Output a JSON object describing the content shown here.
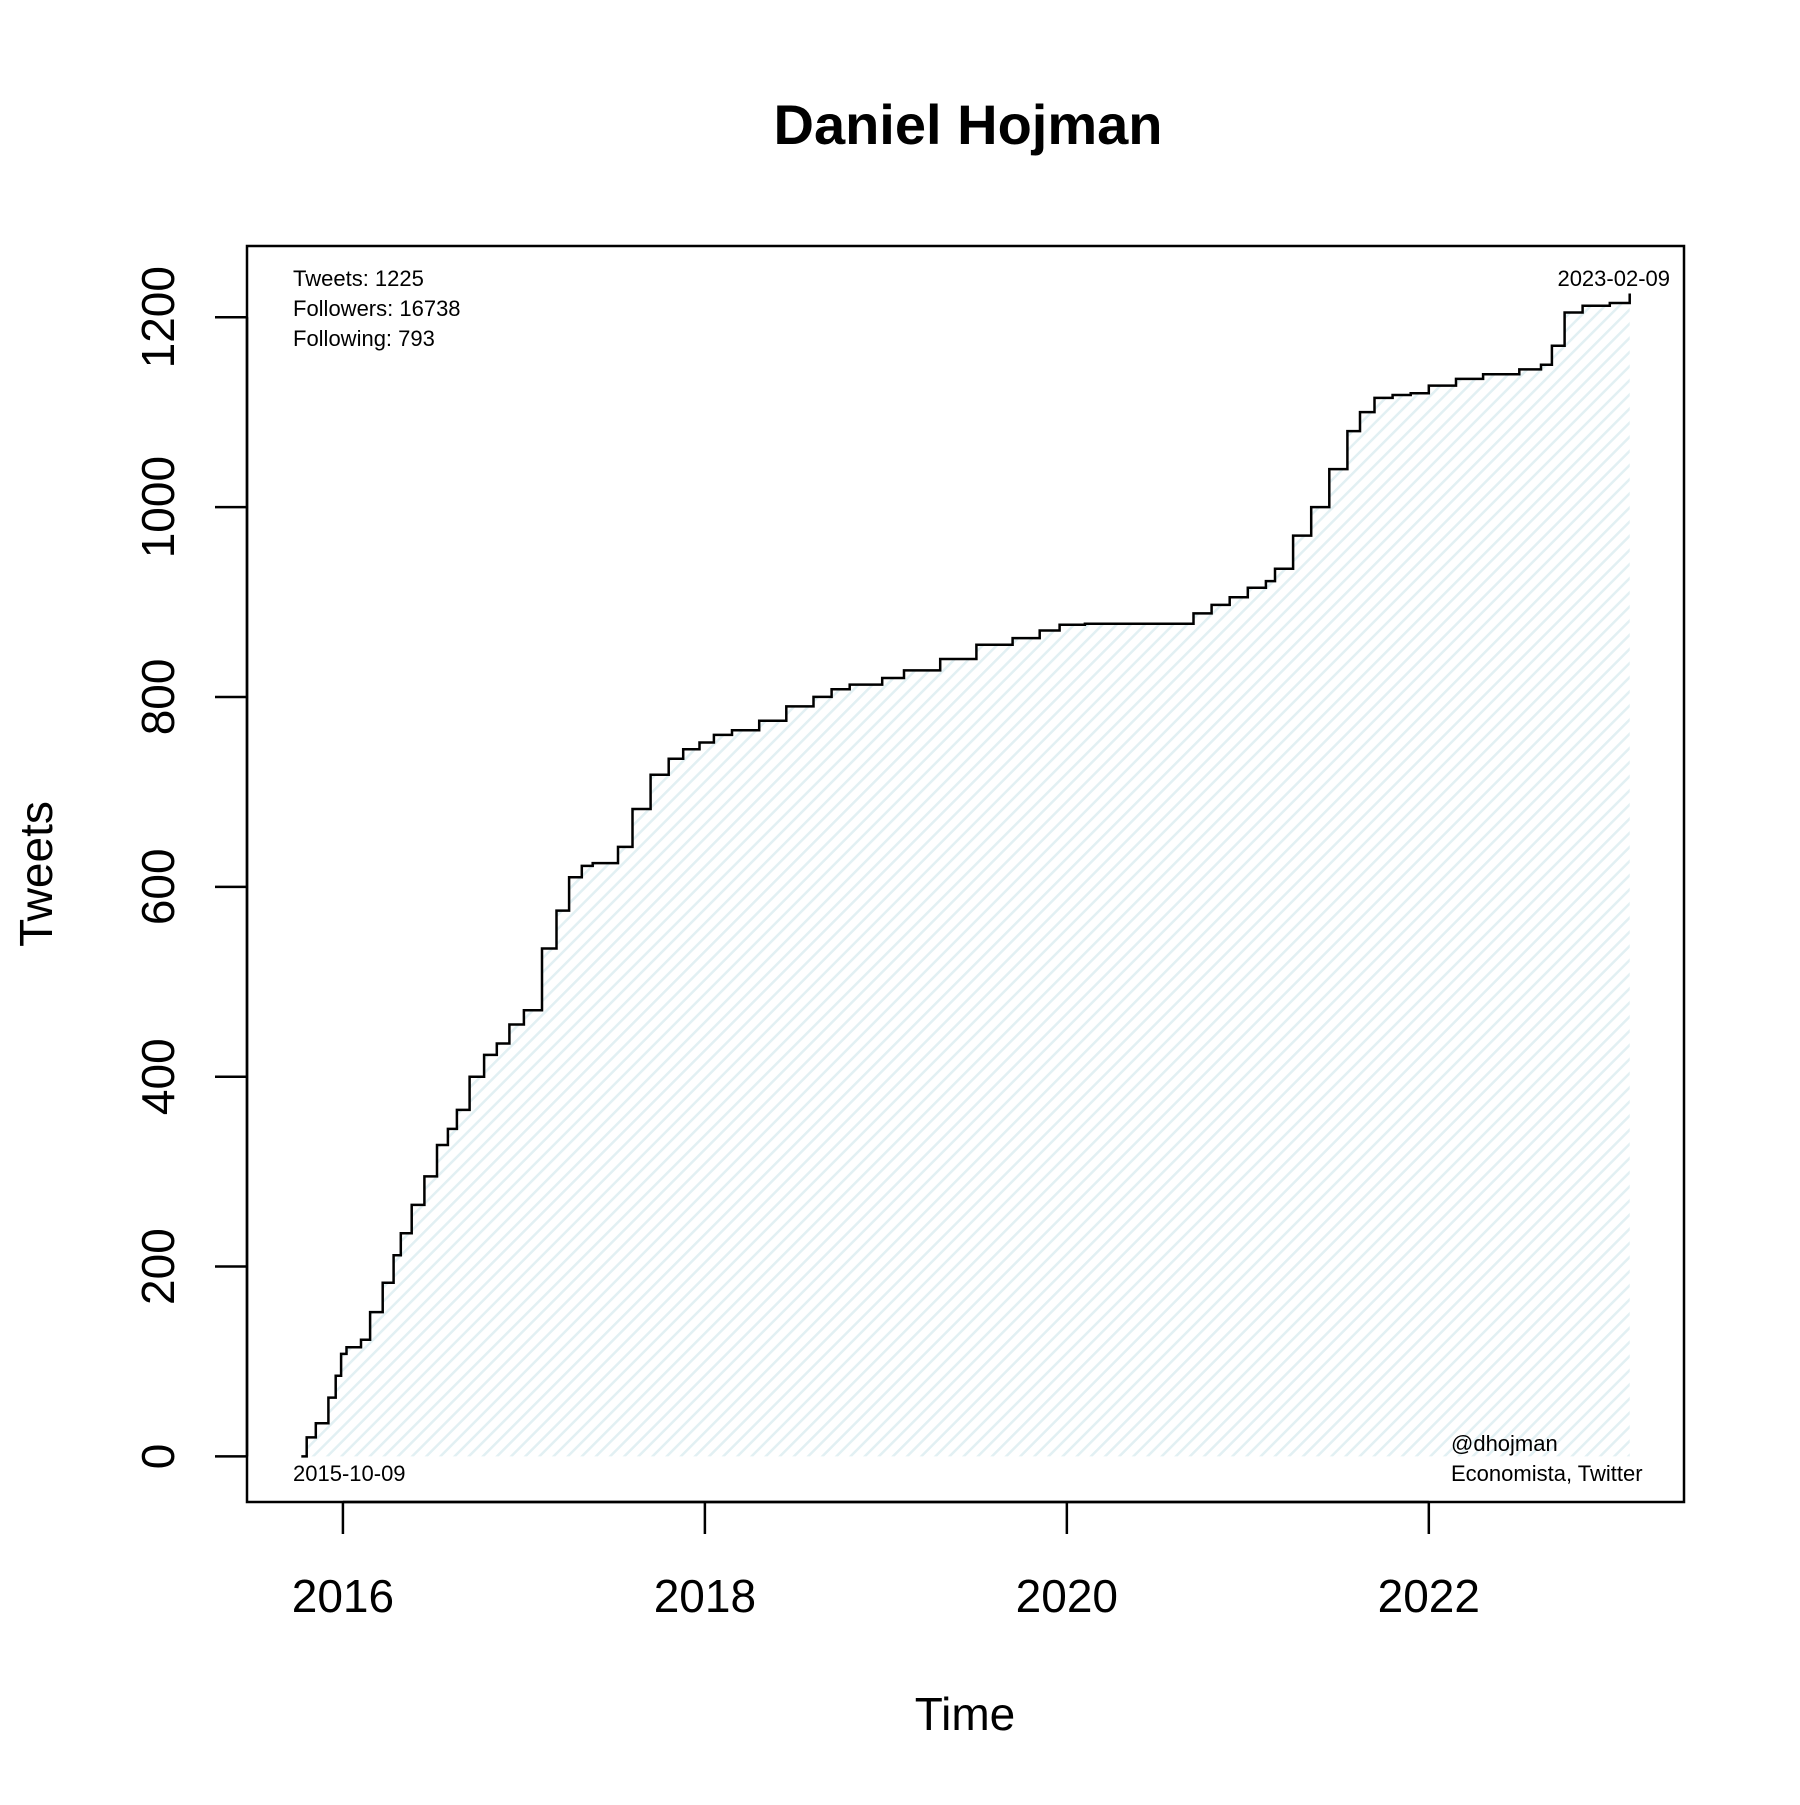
{
  "chart_data": {
    "type": "area",
    "title": "Daniel Hojman",
    "xlabel": "Time",
    "ylabel": "Tweets",
    "xlim": [
      2015.47,
      2023.41
    ],
    "ylim": [
      -48,
      1275
    ],
    "x_ticks": [
      "2016",
      "2018",
      "2020",
      "2022"
    ],
    "y_ticks": [
      "0",
      "200",
      "400",
      "600",
      "800",
      "1000",
      "1200"
    ],
    "grid": false,
    "fill_color": "#e6f3f5",
    "line_color": "#000000",
    "stats": [
      "Tweets: 1225",
      "Followers: 16738",
      "Following: 793"
    ],
    "start_date": "2015-10-09",
    "end_date": "2023-02-09",
    "credits": [
      "@dhojman",
      "Economista, Twitter"
    ],
    "series": [
      {
        "x": [
          2015.77,
          2015.8,
          2015.85,
          2015.92,
          2015.96,
          2015.99,
          2016.02,
          2016.1,
          2016.15,
          2016.22,
          2016.28,
          2016.32,
          2016.38,
          2016.45,
          2016.52,
          2016.58,
          2016.63,
          2016.7,
          2016.78,
          2016.85,
          2016.92,
          2017.0,
          2017.1,
          2017.18,
          2017.25,
          2017.32,
          2017.38,
          2017.45,
          2017.52,
          2017.6,
          2017.7,
          2017.8,
          2017.88,
          2017.97,
          2018.05,
          2018.15,
          2018.3,
          2018.45,
          2018.6,
          2018.7,
          2018.8,
          2018.98,
          2019.1,
          2019.3,
          2019.5,
          2019.7,
          2019.85,
          2019.96,
          2020.1,
          2020.3,
          2020.5,
          2020.67,
          2020.7,
          2020.8,
          2020.9,
          2021.0,
          2021.1,
          2021.15,
          2021.25,
          2021.35,
          2021.45,
          2021.55,
          2021.62,
          2021.7,
          2021.8,
          2021.9,
          2022.0,
          2022.15,
          2022.3,
          2022.5,
          2022.62,
          2022.68,
          2022.75,
          2022.85,
          2023.0,
          2023.11
        ],
        "y": [
          0,
          20,
          35,
          62,
          85,
          108,
          115,
          123,
          152,
          183,
          212,
          235,
          265,
          295,
          328,
          345,
          365,
          400,
          423,
          435,
          455,
          470,
          535,
          575,
          610,
          622,
          625,
          625,
          642,
          682,
          718,
          735,
          745,
          752,
          760,
          765,
          775,
          790,
          800,
          808,
          813,
          820,
          828,
          840,
          855,
          862,
          870,
          876,
          877,
          877,
          877,
          877,
          888,
          897,
          905,
          915,
          922,
          935,
          970,
          1000,
          1040,
          1080,
          1100,
          1115,
          1118,
          1120,
          1128,
          1135,
          1140,
          1145,
          1150,
          1170,
          1205,
          1212,
          1215,
          1225
        ]
      }
    ]
  }
}
